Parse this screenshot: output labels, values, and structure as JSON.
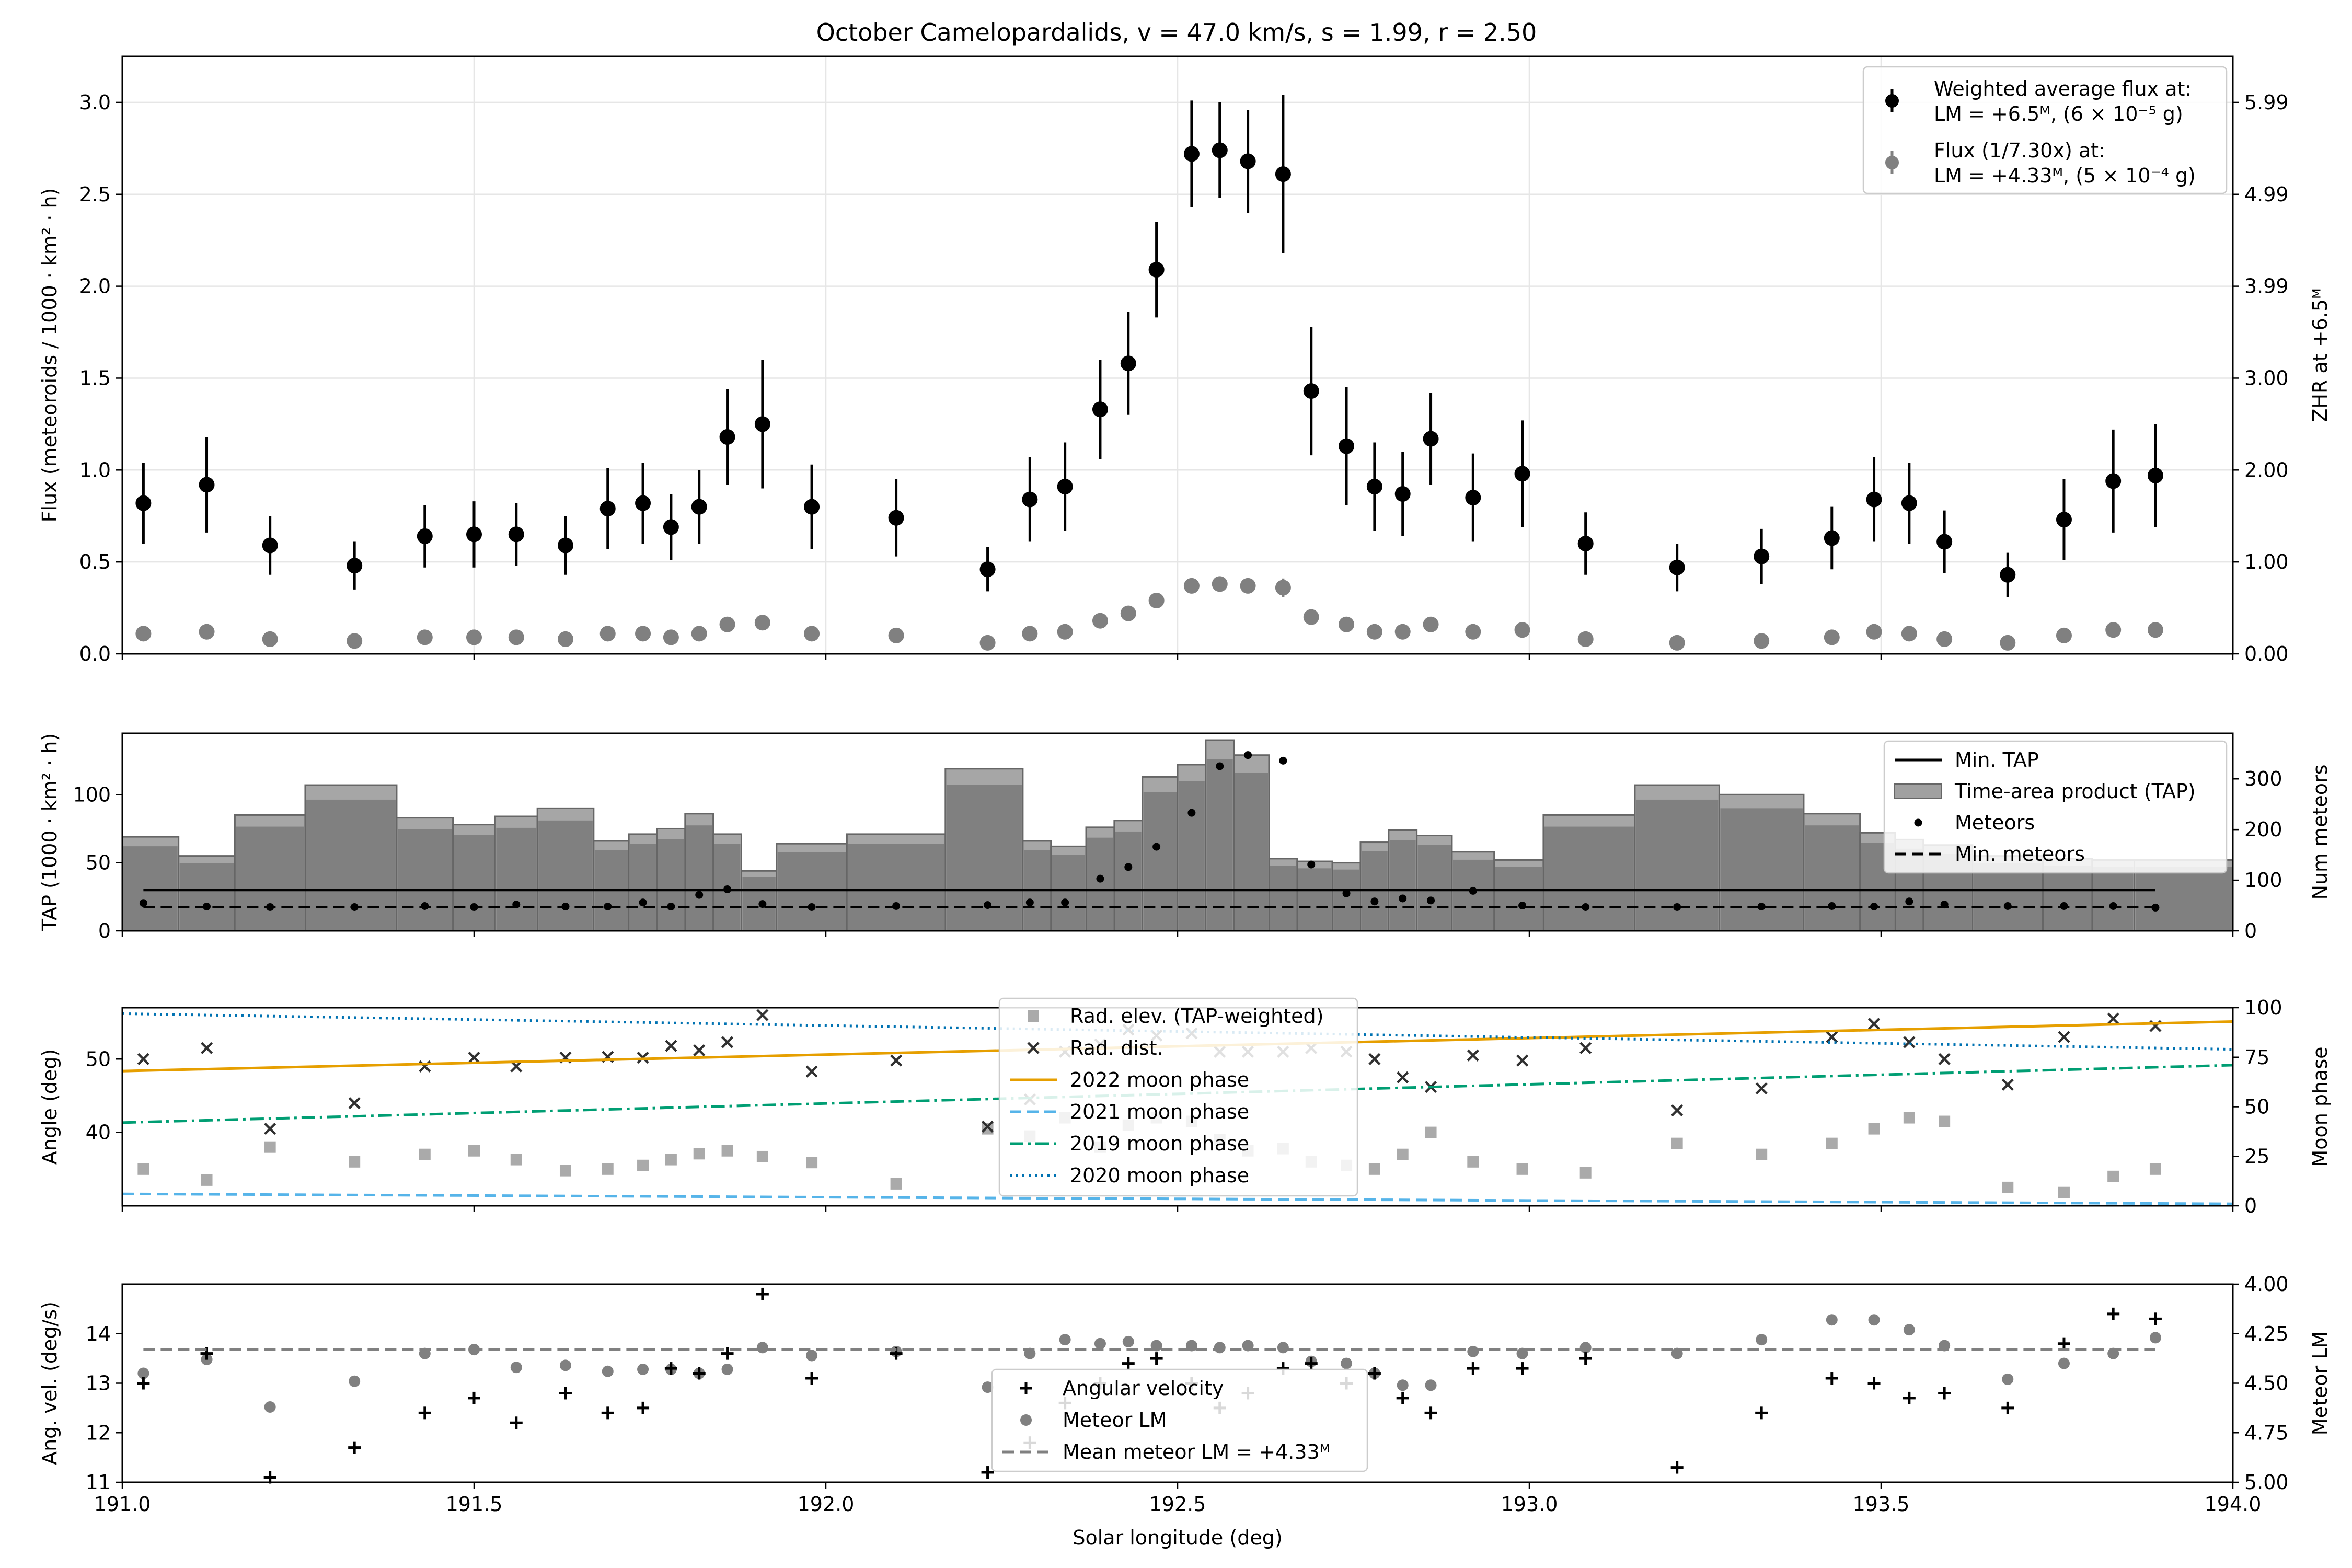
{
  "chart_data": [
    {
      "type": "scatter",
      "panel": "flux",
      "title": "October Camelopardalids, v = 47.0 km/s, s = 1.99, r = 2.50",
      "xlabel": "",
      "ylabel": "Flux (meteoroids / 1000 · km² · h)",
      "ylabel_right": "ZHR at +6.5ᴹ",
      "xlim": [
        191.0,
        194.0
      ],
      "ylim": [
        0,
        3.25
      ],
      "grid": true,
      "legend_position": "top-right",
      "y_ticks": [
        0.0,
        0.5,
        1.0,
        1.5,
        2.0,
        2.5,
        3.0
      ],
      "y_tick_labels": [
        "0.0",
        "0.5",
        "1.0",
        "1.5",
        "2.0",
        "2.5",
        "3.0"
      ],
      "right_ticks": [
        {
          "value": 0.0,
          "label": "0.00"
        },
        {
          "value": 0.5,
          "label": "1.00"
        },
        {
          "value": 1.0,
          "label": "2.00"
        },
        {
          "value": 1.5,
          "label": "3.00"
        },
        {
          "value": 2.0,
          "label": "3.99"
        },
        {
          "value": 2.5,
          "label": "4.99"
        },
        {
          "value": 3.0,
          "label": "5.99"
        }
      ],
      "legend": [
        {
          "marker": "errorbar",
          "color": "#000000",
          "line1": "Weighted average flux at:",
          "line2": "LM = +6.5ᴹ, (6 × 10⁻⁵ g)"
        },
        {
          "marker": "errorbar",
          "color": "#808080",
          "line1": "Flux (1/7.30x) at:",
          "line2": "LM = +4.33ᴹ, (5 × 10⁻⁴ g)"
        }
      ],
      "x": [
        191.03,
        191.12,
        191.21,
        191.33,
        191.43,
        191.5,
        191.56,
        191.63,
        191.69,
        191.74,
        191.78,
        191.82,
        191.86,
        191.91,
        191.98,
        192.1,
        192.23,
        192.29,
        192.34,
        192.39,
        192.43,
        192.47,
        192.52,
        192.56,
        192.6,
        192.65,
        192.69,
        192.74,
        192.78,
        192.82,
        192.86,
        192.92,
        192.99,
        193.08,
        193.21,
        193.33,
        193.43,
        193.49,
        193.54,
        193.59,
        193.68,
        193.76,
        193.83,
        193.89
      ],
      "series": [
        {
          "name": "Weighted average flux",
          "color": "#000000",
          "y": [
            0.82,
            0.92,
            0.59,
            0.48,
            0.64,
            0.65,
            0.65,
            0.59,
            0.79,
            0.82,
            0.69,
            0.8,
            1.18,
            1.25,
            0.8,
            0.74,
            0.46,
            0.84,
            0.91,
            1.33,
            1.58,
            2.09,
            2.72,
            2.74,
            2.68,
            2.61,
            1.43,
            1.13,
            0.91,
            0.87,
            1.17,
            0.85,
            0.98,
            0.6,
            0.47,
            0.53,
            0.63,
            0.84,
            0.82,
            0.61,
            0.43,
            0.73,
            0.94,
            0.97
          ],
          "err": [
            0.22,
            0.26,
            0.16,
            0.13,
            0.17,
            0.18,
            0.17,
            0.16,
            0.22,
            0.22,
            0.18,
            0.2,
            0.26,
            0.35,
            0.23,
            0.21,
            0.12,
            0.23,
            0.24,
            0.27,
            0.28,
            0.26,
            0.29,
            0.26,
            0.28,
            0.43,
            0.35,
            0.32,
            0.24,
            0.23,
            0.25,
            0.24,
            0.29,
            0.17,
            0.13,
            0.15,
            0.17,
            0.23,
            0.22,
            0.17,
            0.12,
            0.22,
            0.28,
            0.28
          ]
        },
        {
          "name": "Flux (1/7.30x)",
          "color": "#808080",
          "y": [
            0.11,
            0.12,
            0.08,
            0.07,
            0.09,
            0.09,
            0.09,
            0.08,
            0.11,
            0.11,
            0.09,
            0.11,
            0.16,
            0.17,
            0.11,
            0.1,
            0.06,
            0.11,
            0.12,
            0.18,
            0.22,
            0.29,
            0.37,
            0.38,
            0.37,
            0.36,
            0.2,
            0.16,
            0.12,
            0.12,
            0.16,
            0.12,
            0.13,
            0.08,
            0.06,
            0.07,
            0.09,
            0.12,
            0.11,
            0.08,
            0.06,
            0.1,
            0.13,
            0.13
          ],
          "err": [
            0.02,
            0.02,
            0.02,
            0.02,
            0.02,
            0.02,
            0.02,
            0.02,
            0.02,
            0.02,
            0.02,
            0.02,
            0.03,
            0.04,
            0.02,
            0.02,
            0.02,
            0.02,
            0.02,
            0.03,
            0.03,
            0.03,
            0.03,
            0.03,
            0.03,
            0.05,
            0.04,
            0.03,
            0.02,
            0.02,
            0.03,
            0.02,
            0.03,
            0.02,
            0.02,
            0.02,
            0.02,
            0.02,
            0.02,
            0.02,
            0.02,
            0.02,
            0.03,
            0.03
          ]
        }
      ]
    },
    {
      "type": "bar",
      "panel": "tap",
      "xlabel": "",
      "ylabel": "TAP (1000 · km² · h)",
      "ylabel_right": "Num meteors",
      "xlim": [
        191.0,
        194.0
      ],
      "ylim": [
        0,
        145
      ],
      "ylim_right": [
        0,
        390
      ],
      "y_ticks": [
        0,
        50,
        100
      ],
      "y_tick_labels": [
        "0",
        "50",
        "100"
      ],
      "y_ticks_right": [
        0,
        100,
        200,
        300
      ],
      "y_tick_labels_right": [
        "0",
        "100",
        "200",
        "300"
      ],
      "grid": false,
      "legend_position": "top-right",
      "legend": [
        {
          "marker": "line-solid",
          "color": "#000000",
          "label": "Min. TAP"
        },
        {
          "marker": "patch",
          "color": "#a0a0a0",
          "label": "Time-area product (TAP)"
        },
        {
          "marker": "dot",
          "color": "#000000",
          "label": "Meteors"
        },
        {
          "marker": "line-dashed",
          "color": "#000000",
          "label": "Min. meteors"
        }
      ],
      "bins": [
        {
          "x0": 191.0,
          "x1": 191.08,
          "tap": 69
        },
        {
          "x0": 191.08,
          "x1": 191.16,
          "tap": 55
        },
        {
          "x0": 191.16,
          "x1": 191.26,
          "tap": 85
        },
        {
          "x0": 191.26,
          "x1": 191.39,
          "tap": 107
        },
        {
          "x0": 191.39,
          "x1": 191.47,
          "tap": 83
        },
        {
          "x0": 191.47,
          "x1": 191.53,
          "tap": 78
        },
        {
          "x0": 191.53,
          "x1": 191.59,
          "tap": 84
        },
        {
          "x0": 191.59,
          "x1": 191.67,
          "tap": 90
        },
        {
          "x0": 191.67,
          "x1": 191.72,
          "tap": 66
        },
        {
          "x0": 191.72,
          "x1": 191.76,
          "tap": 71
        },
        {
          "x0": 191.76,
          "x1": 191.8,
          "tap": 75
        },
        {
          "x0": 191.8,
          "x1": 191.84,
          "tap": 86
        },
        {
          "x0": 191.84,
          "x1": 191.88,
          "tap": 71
        },
        {
          "x0": 191.88,
          "x1": 191.93,
          "tap": 44
        },
        {
          "x0": 191.93,
          "x1": 192.03,
          "tap": 64
        },
        {
          "x0": 192.03,
          "x1": 192.17,
          "tap": 71
        },
        {
          "x0": 192.17,
          "x1": 192.28,
          "tap": 119
        },
        {
          "x0": 192.28,
          "x1": 192.32,
          "tap": 66
        },
        {
          "x0": 192.32,
          "x1": 192.37,
          "tap": 62
        },
        {
          "x0": 192.37,
          "x1": 192.41,
          "tap": 76
        },
        {
          "x0": 192.41,
          "x1": 192.45,
          "tap": 81
        },
        {
          "x0": 192.45,
          "x1": 192.5,
          "tap": 113
        },
        {
          "x0": 192.5,
          "x1": 192.54,
          "tap": 122
        },
        {
          "x0": 192.54,
          "x1": 192.58,
          "tap": 140
        },
        {
          "x0": 192.58,
          "x1": 192.63,
          "tap": 129
        },
        {
          "x0": 192.63,
          "x1": 192.67,
          "tap": 53
        },
        {
          "x0": 192.67,
          "x1": 192.72,
          "tap": 51
        },
        {
          "x0": 192.72,
          "x1": 192.76,
          "tap": 50
        },
        {
          "x0": 192.76,
          "x1": 192.8,
          "tap": 65
        },
        {
          "x0": 192.8,
          "x1": 192.84,
          "tap": 74
        },
        {
          "x0": 192.84,
          "x1": 192.89,
          "tap": 70
        },
        {
          "x0": 192.89,
          "x1": 192.95,
          "tap": 58
        },
        {
          "x0": 192.95,
          "x1": 193.02,
          "tap": 52
        },
        {
          "x0": 193.02,
          "x1": 193.15,
          "tap": 85
        },
        {
          "x0": 193.15,
          "x1": 193.27,
          "tap": 107
        },
        {
          "x0": 193.27,
          "x1": 193.39,
          "tap": 100
        },
        {
          "x0": 193.39,
          "x1": 193.47,
          "tap": 86
        },
        {
          "x0": 193.47,
          "x1": 193.52,
          "tap": 72
        },
        {
          "x0": 193.52,
          "x1": 193.56,
          "tap": 67
        },
        {
          "x0": 193.56,
          "x1": 193.63,
          "tap": 63
        },
        {
          "x0": 193.63,
          "x1": 193.73,
          "tap": 55
        },
        {
          "x0": 193.73,
          "x1": 193.8,
          "tap": 53
        },
        {
          "x0": 193.8,
          "x1": 193.86,
          "tap": 52
        },
        {
          "x0": 193.86,
          "x1": 194.0,
          "tap": 52
        }
      ],
      "meteors": [
        55,
        48,
        47,
        47,
        49,
        47,
        52,
        48,
        48,
        56,
        48,
        71,
        82,
        53,
        47,
        49,
        51,
        56,
        56,
        103,
        126,
        166,
        233,
        325,
        347,
        336,
        131,
        74,
        58,
        64,
        60,
        79,
        50,
        47,
        47,
        48,
        49,
        48,
        58,
        52,
        49,
        49,
        49,
        46
      ],
      "min_tap": 30,
      "min_meteors": 47
    },
    {
      "type": "scatter",
      "panel": "angles",
      "xlabel": "",
      "ylabel": "Angle (deg)",
      "ylabel_right": "Moon phase",
      "xlim": [
        191.0,
        194.0
      ],
      "ylim": [
        30,
        57
      ],
      "ylim_right": [
        0,
        100
      ],
      "y_ticks": [
        40,
        50
      ],
      "y_tick_labels": [
        "40",
        "50"
      ],
      "y_ticks_right": [
        0,
        25,
        50,
        75,
        100
      ],
      "y_tick_labels_right": [
        "0",
        "25",
        "50",
        "75",
        "100"
      ],
      "grid": false,
      "legend_position": "top-center",
      "legend": [
        {
          "marker": "square",
          "color": "#aaaaaa",
          "label": "Rad. elev. (TAP-weighted)"
        },
        {
          "marker": "x",
          "color": "#303030",
          "label": "Rad. dist."
        },
        {
          "marker": "line-solid",
          "color": "#e69f00",
          "label": "2022 moon phase"
        },
        {
          "marker": "line-dashed",
          "color": "#56b4e9",
          "label": "2021 moon phase"
        },
        {
          "marker": "line-dashdot",
          "color": "#009e73",
          "label": "2019 moon phase"
        },
        {
          "marker": "line-dotted",
          "color": "#0072b2",
          "label": "2020 moon phase"
        }
      ],
      "rad_elev": [
        35.0,
        33.5,
        38.0,
        36.0,
        37.0,
        37.5,
        36.3,
        34.8,
        35.0,
        35.5,
        36.3,
        37.1,
        37.5,
        36.7,
        35.9,
        33.0,
        40.5,
        39.5,
        42.0,
        38.0,
        41.0,
        42.0,
        41.5,
        39.0,
        37.5,
        37.8,
        36.0,
        35.5,
        35.0,
        37.0,
        40.0,
        36.0,
        35.0,
        34.5,
        38.5,
        37.0,
        38.5,
        40.5,
        42.0,
        41.5,
        32.5,
        31.8,
        34.0,
        35.0
      ],
      "rad_dist": [
        50.0,
        51.5,
        40.5,
        44.0,
        49.0,
        50.2,
        49.0,
        50.2,
        50.3,
        50.2,
        51.8,
        51.2,
        52.3,
        56.0,
        48.3,
        49.8,
        40.8,
        44.5,
        51.0,
        52.0,
        54.0,
        53.2,
        53.5,
        51.0,
        51.0,
        51.0,
        51.5,
        51.0,
        50.0,
        47.5,
        46.2,
        50.5,
        49.8,
        51.5,
        43.0,
        46.0,
        53.0,
        54.8,
        52.3,
        50.0,
        46.5,
        53.0,
        55.5,
        54.5
      ],
      "moon_phases": [
        {
          "name": "2022 moon phase",
          "color": "#e69f00",
          "style": "solid",
          "start": 68,
          "end": 93
        },
        {
          "name": "2021 moon phase",
          "color": "#56b4e9",
          "style": "dashed",
          "start": 6,
          "end": 1
        },
        {
          "name": "2019 moon phase",
          "color": "#009e73",
          "style": "dashdot",
          "start": 42,
          "end": 71
        },
        {
          "name": "2020 moon phase",
          "color": "#0072b2",
          "style": "dotted",
          "start": 97,
          "end": 79
        }
      ]
    },
    {
      "type": "scatter",
      "panel": "velocity",
      "xlabel": "Solar longitude (deg)",
      "ylabel": "Ang. vel. (deg/s)",
      "ylabel_right": "Meteor LM",
      "xlim": [
        191.0,
        194.0
      ],
      "x_ticks": [
        191.0,
        191.5,
        192.0,
        192.5,
        193.0,
        193.5,
        194.0
      ],
      "x_tick_labels": [
        "191.0",
        "191.5",
        "192.0",
        "192.5",
        "193.0",
        "193.5",
        "194.0"
      ],
      "ylim": [
        11,
        15
      ],
      "ylim_right": [
        5.0,
        4.0
      ],
      "y_ticks": [
        11,
        12,
        13,
        14
      ],
      "y_tick_labels": [
        "11",
        "12",
        "13",
        "14"
      ],
      "y_ticks_right": [
        4.0,
        4.25,
        4.5,
        4.75,
        5.0
      ],
      "y_tick_labels_right": [
        "4.00",
        "4.25",
        "4.50",
        "4.75",
        "5.00"
      ],
      "grid": false,
      "legend_position": "bottom-center",
      "legend": [
        {
          "marker": "plus",
          "color": "#000000",
          "label": "Angular velocity"
        },
        {
          "marker": "circle",
          "color": "#808080",
          "label": "Meteor LM"
        },
        {
          "marker": "line-dashed",
          "color": "#808080",
          "label": "Mean meteor LM = +4.33ᴹ"
        }
      ],
      "ang_vel": [
        13.0,
        13.6,
        11.1,
        11.7,
        12.4,
        12.7,
        12.2,
        12.8,
        12.4,
        12.5,
        13.3,
        13.2,
        13.6,
        14.8,
        13.1,
        13.6,
        11.2,
        11.8,
        12.6,
        13.0,
        13.4,
        13.5,
        13.0,
        12.5,
        12.8,
        13.3,
        13.4,
        13.0,
        13.2,
        12.7,
        12.4,
        13.3,
        13.3,
        13.5,
        11.3,
        12.4,
        13.1,
        13.0,
        12.7,
        12.8,
        12.5,
        13.8,
        14.4,
        14.3
      ],
      "meteor_lm": [
        4.45,
        4.38,
        4.62,
        4.49,
        4.35,
        4.33,
        4.42,
        4.41,
        4.44,
        4.43,
        4.43,
        4.45,
        4.43,
        4.32,
        4.36,
        4.34,
        4.52,
        4.35,
        4.28,
        4.3,
        4.29,
        4.31,
        4.31,
        4.32,
        4.31,
        4.32,
        4.39,
        4.4,
        4.45,
        4.51,
        4.51,
        4.34,
        4.35,
        4.32,
        4.35,
        4.28,
        4.18,
        4.18,
        4.23,
        4.31,
        4.48,
        4.4,
        4.35,
        4.27
      ],
      "mean_lm": 4.33
    }
  ]
}
